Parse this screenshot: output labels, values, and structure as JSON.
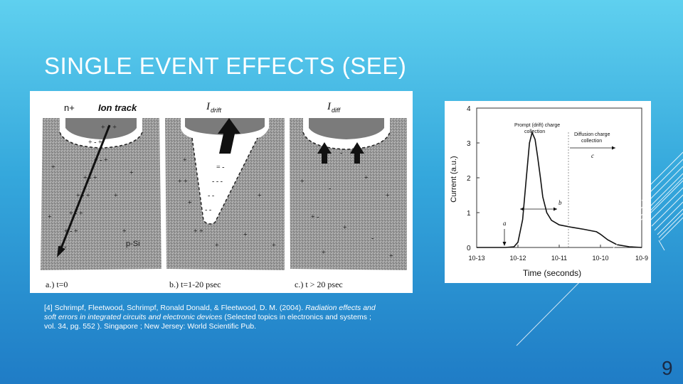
{
  "slide": {
    "title": "SINGLE EVENT EFFECTS (SEE)",
    "page_number": "9"
  },
  "left_figure": {
    "labels": {
      "n_plus": "n+",
      "ion_track": "Ion track",
      "i_drift": "drift",
      "i_diff": "diff",
      "i_symbol": "I",
      "p_si": "p-Si",
      "panel_a": "a.) t=0",
      "panel_b": "b.) t=1-20 psec",
      "panel_c": "c.) t > 20 psec"
    }
  },
  "right_figure": {
    "annotations": {
      "prompt_line1": "Prompt (drift) charge",
      "prompt_line2": "collection",
      "diffusion_line1": "Diffusion charge",
      "diffusion_line2": "collection",
      "a": "a",
      "b": "b",
      "c": "c"
    }
  },
  "chart_data": {
    "type": "line",
    "xlabel": "Time (seconds)",
    "ylabel": "Current (a.u.)",
    "x_scale": "log",
    "x_ticks": [
      "10-13",
      "10-12",
      "10-11",
      "10-10",
      "10-9"
    ],
    "y_ticks": [
      "0",
      "1",
      "2",
      "3",
      "4"
    ],
    "xlim": [
      1e-13,
      1e-09
    ],
    "ylim": [
      0,
      4
    ],
    "series": [
      {
        "x": [
          1e-13,
          5e-13,
          8e-13,
          1e-12,
          1.3e-12,
          1.6e-12,
          1.9e-12,
          2.2e-12,
          2.6e-12,
          3e-12,
          3.5e-12,
          4e-12,
          5e-12,
          6.5e-12,
          1e-11,
          2e-11,
          4e-11,
          6e-11,
          8e-11,
          1e-10,
          1.5e-10,
          2.5e-10,
          5e-10,
          1e-09
        ],
        "y": [
          0,
          0,
          0.02,
          0.15,
          0.8,
          2.0,
          3.0,
          3.3,
          3.1,
          2.6,
          2.0,
          1.45,
          1.0,
          0.78,
          0.65,
          0.58,
          0.52,
          0.48,
          0.45,
          0.38,
          0.22,
          0.08,
          0.02,
          0
        ]
      }
    ]
  }
}
